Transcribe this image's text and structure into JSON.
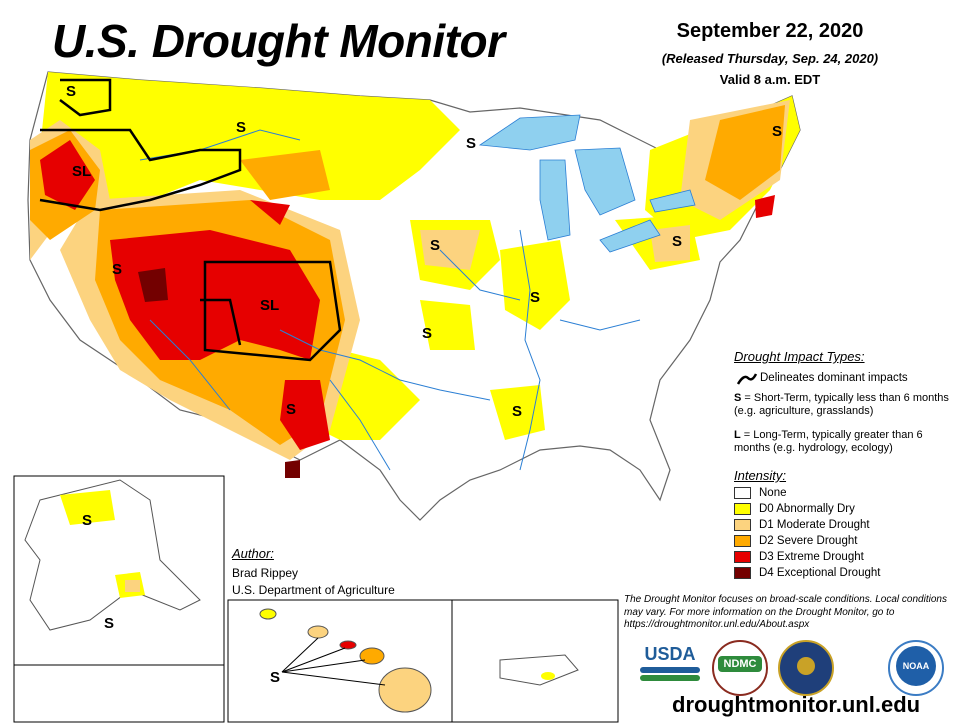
{
  "header": {
    "title": "U.S. Drought Monitor",
    "date": "September 22, 2020",
    "released": "(Released Thursday, Sep. 24, 2020)",
    "valid": "Valid 8 a.m. EDT"
  },
  "map_labels": {
    "s": "S",
    "sl": "SL"
  },
  "impact_types": {
    "heading": "Drought Impact Types:",
    "delineates": "Delineates dominant impacts",
    "s_key": "S",
    "s_text": " = Short-Term, typically less than 6 months (e.g. agriculture, grasslands)",
    "l_key": "L",
    "l_text": " = Long-Term, typically greater than 6 months (e.g. hydrology, ecology)"
  },
  "intensity": {
    "heading": "Intensity:",
    "items": [
      {
        "label": "None",
        "color": "#ffffff"
      },
      {
        "label": "D0 Abnormally Dry",
        "color": "#ffff00"
      },
      {
        "label": "D1 Moderate Drought",
        "color": "#fcd37f"
      },
      {
        "label": "D2 Severe Drought",
        "color": "#ffaa00"
      },
      {
        "label": "D3 Extreme Drought",
        "color": "#e60000"
      },
      {
        "label": "D4 Exceptional Drought",
        "color": "#730000"
      }
    ]
  },
  "author": {
    "heading": "Author:",
    "name": "Brad Rippey",
    "org": "U.S. Department of Agriculture"
  },
  "note": "The Drought Monitor focuses on broad-scale conditions. Local conditions may vary. For more information on the Drought Monitor, go to https://droughtmonitor.unl.edu/About.aspx",
  "url": "droughtmonitor.unl.edu",
  "logos": {
    "usda": "USDA",
    "ndmc": "NDMC",
    "commerce": "",
    "noaa": "NOAA"
  },
  "colors": {
    "water": "#8fd0ef",
    "river": "#2b7fd4",
    "boundary": "#666666"
  }
}
